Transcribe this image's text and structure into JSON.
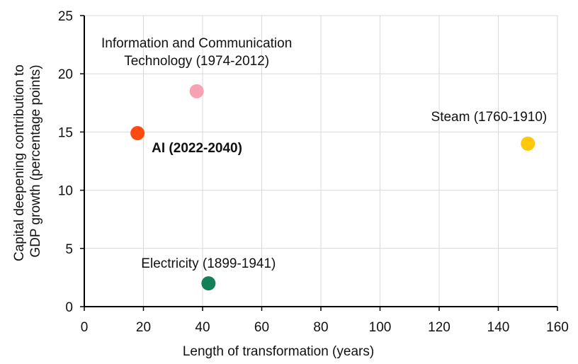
{
  "chart_data": {
    "type": "scatter",
    "xlabel": "Length of transformation (years)",
    "ylabel_lines": [
      "Capital deepening contribution to",
      "GDP growth (percentage points)"
    ],
    "xlim": [
      0,
      160
    ],
    "ylim": [
      0,
      25
    ],
    "xticks": [
      0,
      20,
      40,
      60,
      80,
      100,
      120,
      140,
      160
    ],
    "yticks": [
      0,
      5,
      10,
      15,
      20,
      25
    ],
    "grid": true,
    "points": [
      {
        "label_lines": [
          "AI (2022-2040)"
        ],
        "x": 18,
        "y": 14.9,
        "color": "#ff4a14",
        "bold": true,
        "label_position": "below-right"
      },
      {
        "label_lines": [
          "Information and Communication",
          "Technology (1974-2012)"
        ],
        "x": 38,
        "y": 18.5,
        "color": "#f7a1b5",
        "bold": false,
        "label_position": "above"
      },
      {
        "label_lines": [
          "Steam (1760-1910)"
        ],
        "x": 150,
        "y": 14,
        "color": "#ffc80a",
        "bold": false,
        "label_position": "above-left"
      },
      {
        "label_lines": [
          "Electricity (1899-1941)"
        ],
        "x": 42,
        "y": 2,
        "color": "#12815a",
        "bold": false,
        "label_position": "above"
      }
    ]
  }
}
